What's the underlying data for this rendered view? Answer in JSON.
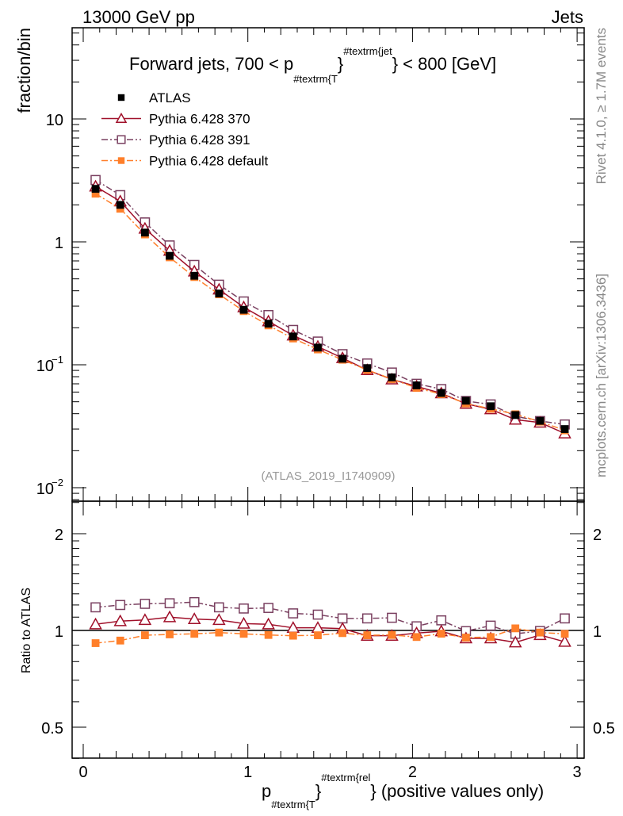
{
  "header": {
    "left": "13000 GeV pp",
    "right": "Jets"
  },
  "side_labels": {
    "top": "Rivet 4.1.0, ≥ 1.7M events",
    "bottom": "mcplots.cern.ch [arXiv:1306.3436]"
  },
  "analysis_id": "(ATLAS_2019_I1740909)",
  "title": {
    "part1": "Forward jets, 700 < p",
    "sub": "#textrm{T",
    "mid": "}",
    "sup": "#textrm{jet",
    "part2": "} < 800 [GeV]"
  },
  "xlabel": {
    "p": "p",
    "sub": "#textrm{T",
    "brace": "}",
    "sup": "#textrm{rel",
    "rest": "} (positive values only)"
  },
  "chart_data": {
    "type": "line",
    "ylabel": "fraction/bin",
    "ratio_ylabel": "Ratio to ATLAS",
    "x": [
      0.075,
      0.225,
      0.375,
      0.525,
      0.675,
      0.825,
      0.975,
      1.125,
      1.275,
      1.425,
      1.575,
      1.725,
      1.875,
      2.025,
      2.175,
      2.325,
      2.475,
      2.625,
      2.775,
      2.925
    ],
    "xlim": [
      -0.07,
      3.04
    ],
    "ylim": [
      0.0078,
      55
    ],
    "yscale": "log",
    "ratio_ylim": [
      0.4,
      2.5
    ],
    "x_ticks": [
      "0",
      "1",
      "2",
      "3"
    ],
    "y_ticks": [
      {
        "value": 10,
        "label": "10"
      },
      {
        "value": 1,
        "label": "1"
      },
      {
        "value": 0.1,
        "label": "10",
        "exp": "−1"
      },
      {
        "value": 0.01,
        "label": "10",
        "exp": "−2"
      }
    ],
    "ratio_ticks": [
      {
        "value": 2,
        "label": "2"
      },
      {
        "value": 1,
        "label": "1"
      },
      {
        "value": 0.5,
        "label": "0.5"
      }
    ],
    "legend_position": "top-left",
    "series": [
      {
        "name": "ATLAS",
        "color": "#000000",
        "marker": "filled-square",
        "line": "none",
        "values": [
          2.7,
          2.0,
          1.19,
          0.77,
          0.53,
          0.38,
          0.28,
          0.216,
          0.17,
          0.138,
          0.112,
          0.094,
          0.079,
          0.068,
          0.059,
          0.051,
          0.046,
          0.039,
          0.035,
          0.03
        ]
      },
      {
        "name": "Pythia 6.428 370",
        "color": "#a0102a",
        "marker": "open-triangle",
        "line": "solid",
        "ratio": [
          1.045,
          1.069,
          1.078,
          1.1,
          1.085,
          1.078,
          1.05,
          1.045,
          1.019,
          1.019,
          1.013,
          0.963,
          0.963,
          0.981,
          0.994,
          0.945,
          0.945,
          0.918,
          0.968,
          0.922
        ]
      },
      {
        "name": "Pythia 6.428 391",
        "color": "#7a4060",
        "marker": "open-square",
        "line": "dashdot",
        "ratio": [
          1.18,
          1.2,
          1.21,
          1.215,
          1.225,
          1.18,
          1.17,
          1.175,
          1.13,
          1.12,
          1.09,
          1.09,
          1.095,
          1.03,
          1.075,
          0.995,
          1.035,
          0.976,
          0.996,
          1.09
        ]
      },
      {
        "name": "Pythia 6.428 default",
        "color": "#ff7f2a",
        "marker": "filled-square",
        "line": "dashdot",
        "ratio": [
          0.913,
          0.93,
          0.966,
          0.972,
          0.976,
          0.985,
          0.976,
          0.968,
          0.963,
          0.966,
          0.981,
          0.966,
          0.968,
          0.954,
          0.977,
          0.95,
          0.954,
          1.015,
          0.985,
          0.976
        ]
      }
    ]
  }
}
